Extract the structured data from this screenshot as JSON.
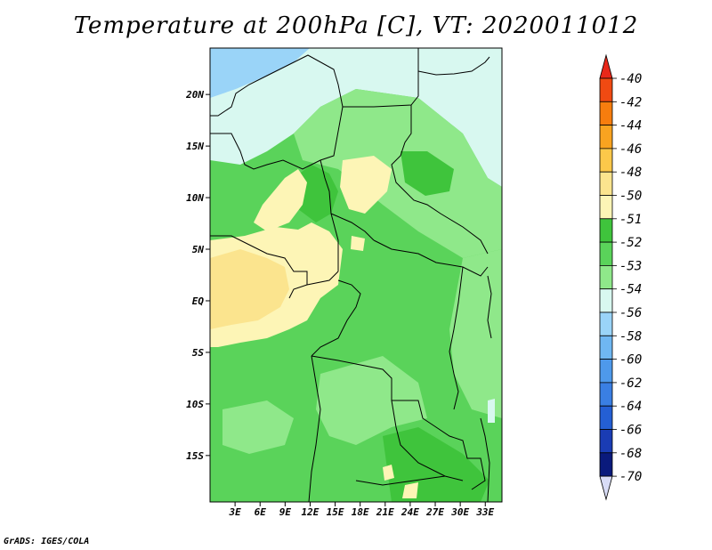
{
  "map": {
    "title": "Temperature at 200hPa [C], VT: 2020011012",
    "credit": "GrADS: IGES/COLA",
    "lat_labels": [
      "20N",
      "15N",
      "10N",
      "5N",
      "EQ",
      "5S",
      "10S",
      "15S"
    ],
    "lon_labels": [
      "3E",
      "6E",
      "9E",
      "12E",
      "15E",
      "18E",
      "21E",
      "24E",
      "27E",
      "30E",
      "33E"
    ],
    "extent": {
      "lon_min": 0,
      "lon_max": 35,
      "lat_min": -19.5,
      "lat_max": 24.5
    }
  },
  "colorbar": {
    "labels": [
      "-40",
      "-42",
      "-44",
      "-46",
      "-48",
      "-50",
      "-51",
      "-52",
      "-53",
      "-54",
      "-56",
      "-58",
      "-60",
      "-62",
      "-64",
      "-66",
      "-68",
      "-70"
    ],
    "colors": [
      "#e8281a",
      "#f04a12",
      "#f77d0e",
      "#f9a320",
      "#fcc84a",
      "#fbe48e",
      "#fdf5b6",
      "#3fc43c",
      "#5ad35a",
      "#8fe88a",
      "#d8f8f0",
      "#9ad4f8",
      "#6fb7f2",
      "#4e99eb",
      "#3a7fe3",
      "#245fd4",
      "#1a3cb4",
      "#0a1a7c",
      "#d8dcf6"
    ]
  },
  "palette": {
    "ocean_blue": "#9ad4f8",
    "pale_cyan": "#d8f8f0",
    "light_green": "#8fe88a",
    "mid_green": "#5ad35a",
    "dark_green": "#3fc43c",
    "pale_yellow": "#fdf5b6",
    "yellow": "#fbe48e"
  }
}
